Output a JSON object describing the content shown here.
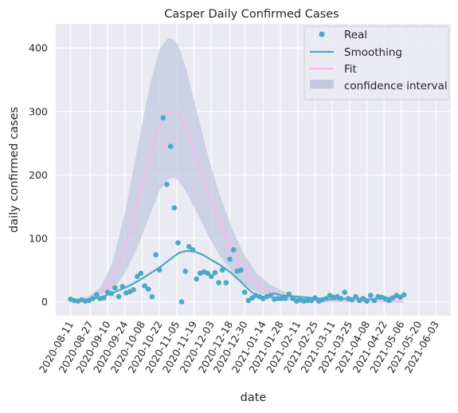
{
  "chart_data": {
    "type": "line",
    "title": "Casper Daily Confirmed Cases",
    "xlabel": "date",
    "ylabel": "daily confirmed cases",
    "x_start": "2020-08-11",
    "x_end": "2021-06-10",
    "ylim": [
      -22,
      438
    ],
    "yticks": [
      0,
      100,
      200,
      300,
      400
    ],
    "xticks": [
      "2020-08-11",
      "2020-08-27",
      "2020-09-10",
      "2020-09-24",
      "2020-10-08",
      "2020-10-22",
      "2020-11-05",
      "2020-11-19",
      "2020-12-03",
      "2020-12-18",
      "2020-12-30",
      "2021-01-14",
      "2021-01-28",
      "2021-02-11",
      "2021-02-25",
      "2021-03-11",
      "2021-03-25",
      "2021-04-08",
      "2021-04-22",
      "2021-05-06",
      "2021-05-20",
      "2021-06-03"
    ],
    "grid": true,
    "legend_position": "top-right",
    "colors": {
      "real": "#4aa9c8",
      "smoothing": "#4aa9c8",
      "fit": "#f5b8ee",
      "ci": "#c3c8e0",
      "plot_bg": "#eaeaf2",
      "grid": "#ffffff"
    },
    "series": [
      {
        "name": "Real",
        "kind": "scatter",
        "points": [
          [
            "2020-08-11",
            4
          ],
          [
            "2020-08-14",
            2
          ],
          [
            "2020-08-17",
            1
          ],
          [
            "2020-08-20",
            3
          ],
          [
            "2020-08-23",
            1
          ],
          [
            "2020-08-26",
            2
          ],
          [
            "2020-08-29",
            5
          ],
          [
            "2020-09-01",
            11
          ],
          [
            "2020-09-04",
            5
          ],
          [
            "2020-09-07",
            6
          ],
          [
            "2020-09-10",
            15
          ],
          [
            "2020-09-13",
            13
          ],
          [
            "2020-09-16",
            22
          ],
          [
            "2020-09-19",
            8
          ],
          [
            "2020-09-22",
            24
          ],
          [
            "2020-09-25",
            14
          ],
          [
            "2020-09-28",
            16
          ],
          [
            "2020-10-01",
            19
          ],
          [
            "2020-10-04",
            40
          ],
          [
            "2020-10-07",
            45
          ],
          [
            "2020-10-10",
            25
          ],
          [
            "2020-10-13",
            20
          ],
          [
            "2020-10-16",
            8
          ],
          [
            "2020-10-19",
            74
          ],
          [
            "2020-10-22",
            50
          ],
          [
            "2020-10-25",
            290
          ],
          [
            "2020-10-28",
            185
          ],
          [
            "2020-10-31",
            245
          ],
          [
            "2020-11-03",
            148
          ],
          [
            "2020-11-06",
            93
          ],
          [
            "2020-11-09",
            0
          ],
          [
            "2020-11-12",
            48
          ],
          [
            "2020-11-15",
            87
          ],
          [
            "2020-11-18",
            82
          ],
          [
            "2020-11-21",
            36
          ],
          [
            "2020-11-24",
            45
          ],
          [
            "2020-11-27",
            47
          ],
          [
            "2020-11-30",
            45
          ],
          [
            "2020-12-03",
            40
          ],
          [
            "2020-12-06",
            46
          ],
          [
            "2020-12-09",
            30
          ],
          [
            "2020-12-12",
            50
          ],
          [
            "2020-12-15",
            30
          ],
          [
            "2020-12-18",
            67
          ],
          [
            "2020-12-21",
            82
          ],
          [
            "2020-12-24",
            48
          ],
          [
            "2020-12-27",
            50
          ],
          [
            "2020-12-30",
            15
          ],
          [
            "2021-01-02",
            2
          ],
          [
            "2021-01-05",
            6
          ],
          [
            "2021-01-08",
            10
          ],
          [
            "2021-01-11",
            8
          ],
          [
            "2021-01-14",
            5
          ],
          [
            "2021-01-17",
            8
          ],
          [
            "2021-01-20",
            10
          ],
          [
            "2021-01-23",
            4
          ],
          [
            "2021-01-26",
            5
          ],
          [
            "2021-01-29",
            5
          ],
          [
            "2021-02-01",
            5
          ],
          [
            "2021-02-04",
            12
          ],
          [
            "2021-02-07",
            5
          ],
          [
            "2021-02-10",
            1
          ],
          [
            "2021-02-13",
            3
          ],
          [
            "2021-02-16",
            1
          ],
          [
            "2021-02-19",
            2
          ],
          [
            "2021-02-22",
            2
          ],
          [
            "2021-02-25",
            6
          ],
          [
            "2021-02-28",
            1
          ],
          [
            "2021-03-03",
            3
          ],
          [
            "2021-03-06",
            5
          ],
          [
            "2021-03-09",
            10
          ],
          [
            "2021-03-12",
            7
          ],
          [
            "2021-03-15",
            8
          ],
          [
            "2021-03-18",
            5
          ],
          [
            "2021-03-21",
            15
          ],
          [
            "2021-03-24",
            5
          ],
          [
            "2021-03-27",
            3
          ],
          [
            "2021-03-30",
            8
          ],
          [
            "2021-04-02",
            2
          ],
          [
            "2021-04-05",
            5
          ],
          [
            "2021-04-08",
            1
          ],
          [
            "2021-04-11",
            10
          ],
          [
            "2021-04-14",
            2
          ],
          [
            "2021-04-17",
            8
          ],
          [
            "2021-04-20",
            7
          ],
          [
            "2021-04-23",
            5
          ],
          [
            "2021-04-26",
            2
          ],
          [
            "2021-04-29",
            6
          ],
          [
            "2021-05-02",
            10
          ],
          [
            "2021-05-05",
            7
          ],
          [
            "2021-05-08",
            11
          ]
        ]
      },
      {
        "name": "Smoothing",
        "kind": "line",
        "points": [
          [
            "2020-08-11",
            2
          ],
          [
            "2020-08-24",
            3
          ],
          [
            "2020-09-04",
            7
          ],
          [
            "2020-09-14",
            14
          ],
          [
            "2020-09-24",
            22
          ],
          [
            "2020-10-04",
            32
          ],
          [
            "2020-10-14",
            44
          ],
          [
            "2020-10-24",
            57
          ],
          [
            "2020-11-01",
            69
          ],
          [
            "2020-11-07",
            77
          ],
          [
            "2020-11-13",
            80
          ],
          [
            "2020-11-19",
            79
          ],
          [
            "2020-11-26",
            74
          ],
          [
            "2020-12-03",
            66
          ],
          [
            "2020-12-10",
            58
          ],
          [
            "2020-12-18",
            47
          ],
          [
            "2020-12-26",
            33
          ],
          [
            "2021-01-02",
            20
          ],
          [
            "2021-01-08",
            11
          ],
          [
            "2021-01-14",
            8
          ],
          [
            "2021-01-20",
            12
          ],
          [
            "2021-01-24",
            13
          ],
          [
            "2021-01-29",
            10
          ],
          [
            "2021-02-04",
            9
          ],
          [
            "2021-02-10",
            8
          ],
          [
            "2021-02-18",
            7
          ],
          [
            "2021-02-28",
            5
          ],
          [
            "2021-03-08",
            4
          ],
          [
            "2021-03-15",
            4
          ],
          [
            "2021-03-23",
            5
          ],
          [
            "2021-04-01",
            5
          ],
          [
            "2021-04-10",
            4
          ],
          [
            "2021-04-20",
            5
          ],
          [
            "2021-04-30",
            7
          ],
          [
            "2021-05-08",
            8
          ]
        ]
      },
      {
        "name": "Fit",
        "kind": "line",
        "points": [
          [
            "2020-08-11",
            1
          ],
          [
            "2020-08-25",
            5
          ],
          [
            "2020-09-04",
            14
          ],
          [
            "2020-09-14",
            38
          ],
          [
            "2020-09-24",
            85
          ],
          [
            "2020-10-04",
            155
          ],
          [
            "2020-10-14",
            230
          ],
          [
            "2020-10-22",
            278
          ],
          [
            "2020-10-29",
            298
          ],
          [
            "2020-11-02",
            300
          ],
          [
            "2020-11-06",
            295
          ],
          [
            "2020-11-13",
            270
          ],
          [
            "2020-11-22",
            220
          ],
          [
            "2020-12-01",
            170
          ],
          [
            "2020-12-10",
            125
          ],
          [
            "2020-12-20",
            82
          ],
          [
            "2020-12-30",
            50
          ],
          [
            "2021-01-09",
            28
          ],
          [
            "2021-01-20",
            15
          ],
          [
            "2021-02-01",
            8
          ],
          [
            "2021-02-15",
            4
          ],
          [
            "2021-03-01",
            2
          ],
          [
            "2021-03-20",
            1
          ],
          [
            "2021-04-10",
            1
          ],
          [
            "2021-05-08",
            0
          ]
        ]
      },
      {
        "name": "confidence interval",
        "kind": "band",
        "points": [
          [
            "2020-08-11",
            0,
            2
          ],
          [
            "2020-08-25",
            4,
            8
          ],
          [
            "2020-09-04",
            10,
            22
          ],
          [
            "2020-09-14",
            20,
            62
          ],
          [
            "2020-09-24",
            45,
            140
          ],
          [
            "2020-10-04",
            85,
            240
          ],
          [
            "2020-10-14",
            135,
            340
          ],
          [
            "2020-10-22",
            175,
            398
          ],
          [
            "2020-10-29",
            193,
            416
          ],
          [
            "2020-11-02",
            196,
            414
          ],
          [
            "2020-11-06",
            192,
            405
          ],
          [
            "2020-11-13",
            172,
            365
          ],
          [
            "2020-11-22",
            138,
            295
          ],
          [
            "2020-12-01",
            102,
            225
          ],
          [
            "2020-12-10",
            72,
            168
          ],
          [
            "2020-12-20",
            45,
            115
          ],
          [
            "2020-12-30",
            27,
            73
          ],
          [
            "2021-01-09",
            15,
            44
          ],
          [
            "2021-01-20",
            7,
            26
          ],
          [
            "2021-02-01",
            3,
            15
          ],
          [
            "2021-02-15",
            1,
            8
          ],
          [
            "2021-03-01",
            0,
            4
          ],
          [
            "2021-03-20",
            0,
            2
          ],
          [
            "2021-04-10",
            0,
            1
          ],
          [
            "2021-05-08",
            0,
            0
          ]
        ]
      }
    ]
  }
}
